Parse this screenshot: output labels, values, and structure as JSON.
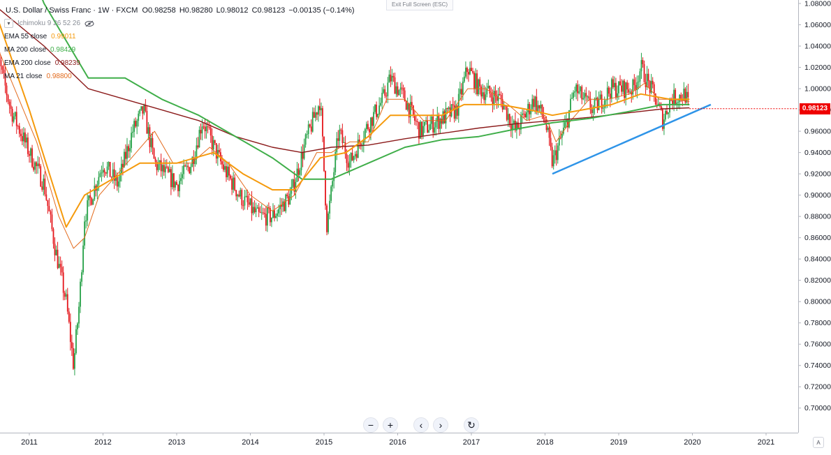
{
  "header": {
    "title": "U.S. Dollar / Swiss Franc · 1W · FXCM",
    "open": "O0.98258",
    "high": "H0.98280",
    "low": "L0.98012",
    "close": "C0.98123",
    "change": "−0.00135 (−0.14%)"
  },
  "indicators": [
    {
      "name": "Ichimoku 9 26 52 26",
      "value": "",
      "color": "#8a8f98"
    },
    {
      "name": "EMA 55 close",
      "value": "0.99011",
      "color": "#f59a0c"
    },
    {
      "name": "MA 200 close",
      "value": "0.98429",
      "color": "#3fae49"
    },
    {
      "name": "EMA 200 close",
      "value": "0.98239",
      "color": "#8b1a1a"
    },
    {
      "name": "MA 21 close",
      "value": "0.98800",
      "color": "#e36a1c"
    }
  ],
  "toolbar": {
    "exit_fullscreen": "Exit Full Screen (ESC)",
    "zoom_out": "−",
    "zoom_in": "+",
    "scroll_left": "‹",
    "scroll_right": "›",
    "reset": "↻",
    "auto_scale": "A"
  },
  "last_price": "0.98123",
  "icons": {
    "eye_off": "eye-off-icon",
    "collapse": "chevron-down-icon"
  },
  "colors": {
    "up_candle": "#26a148",
    "down_candle": "#e4161b",
    "ema55": "#f59a0c",
    "ma200": "#3fae49",
    "ema200": "#8b1a1a",
    "ma21": "#e36a1c",
    "trendline": "#2e94e8",
    "price_tag": "#ef0000"
  },
  "chart_data": {
    "type": "candlestick",
    "symbol": "USDCHF",
    "interval": "1W",
    "ylim": [
      0.69,
      1.08
    ],
    "y_ticks": [
      "1.08000",
      "1.06000",
      "1.04000",
      "1.02000",
      "1.00000",
      "0.98000",
      "0.96000",
      "0.94000",
      "0.92000",
      "0.90000",
      "0.88000",
      "0.86000",
      "0.84000",
      "0.82000",
      "0.80000",
      "0.78000",
      "0.76000",
      "0.74000",
      "0.72000",
      "0.70000"
    ],
    "x_ticks": [
      "2011",
      "2012",
      "2013",
      "2014",
      "2015",
      "2016",
      "2017",
      "2018",
      "2019",
      "2020",
      "2021"
    ],
    "price_anchors": [
      [
        2010.5,
        1.05
      ],
      [
        2010.75,
        0.98
      ],
      [
        2011.0,
        0.94
      ],
      [
        2011.2,
        0.91
      ],
      [
        2011.35,
        0.85
      ],
      [
        2011.5,
        0.8
      ],
      [
        2011.6,
        0.74
      ],
      [
        2011.68,
        0.8
      ],
      [
        2011.75,
        0.88
      ],
      [
        2012.0,
        0.93
      ],
      [
        2012.2,
        0.91
      ],
      [
        2012.4,
        0.96
      ],
      [
        2012.55,
        0.98
      ],
      [
        2012.7,
        0.93
      ],
      [
        2013.0,
        0.91
      ],
      [
        2013.2,
        0.93
      ],
      [
        2013.35,
        0.97
      ],
      [
        2013.6,
        0.93
      ],
      [
        2013.85,
        0.9
      ],
      [
        2014.1,
        0.88
      ],
      [
        2014.3,
        0.88
      ],
      [
        2014.55,
        0.9
      ],
      [
        2014.75,
        0.95
      ],
      [
        2014.95,
        0.99
      ],
      [
        2015.04,
        0.87
      ],
      [
        2015.2,
        0.96
      ],
      [
        2015.35,
        0.93
      ],
      [
        2015.55,
        0.96
      ],
      [
        2015.8,
        0.99
      ],
      [
        2015.9,
        1.01
      ],
      [
        2016.1,
        0.99
      ],
      [
        2016.3,
        0.96
      ],
      [
        2016.55,
        0.97
      ],
      [
        2016.8,
        0.98
      ],
      [
        2016.95,
        1.02
      ],
      [
        2017.1,
        1.0
      ],
      [
        2017.4,
        0.99
      ],
      [
        2017.6,
        0.96
      ],
      [
        2017.85,
        0.99
      ],
      [
        2018.0,
        0.97
      ],
      [
        2018.1,
        0.93
      ],
      [
        2018.3,
        0.97
      ],
      [
        2018.4,
        1.0
      ],
      [
        2018.65,
        0.98
      ],
      [
        2018.9,
        1.0
      ],
      [
        2019.2,
        1.0
      ],
      [
        2019.3,
        1.02
      ],
      [
        2019.5,
        0.99
      ],
      [
        2019.6,
        0.97
      ],
      [
        2019.7,
        0.99
      ],
      [
        2019.9,
        0.995
      ],
      [
        2019.96,
        0.981
      ]
    ],
    "ema55": [
      [
        2010.5,
        1.08
      ],
      [
        2011.0,
        0.98
      ],
      [
        2011.5,
        0.87
      ],
      [
        2011.75,
        0.9
      ],
      [
        2012.0,
        0.91
      ],
      [
        2012.5,
        0.93
      ],
      [
        2013.0,
        0.93
      ],
      [
        2013.5,
        0.94
      ],
      [
        2013.9,
        0.92
      ],
      [
        2014.3,
        0.905
      ],
      [
        2014.6,
        0.905
      ],
      [
        2014.95,
        0.935
      ],
      [
        2015.3,
        0.94
      ],
      [
        2015.6,
        0.955
      ],
      [
        2015.9,
        0.975
      ],
      [
        2016.3,
        0.975
      ],
      [
        2016.6,
        0.975
      ],
      [
        2016.9,
        0.985
      ],
      [
        2017.4,
        0.985
      ],
      [
        2017.8,
        0.98
      ],
      [
        2018.1,
        0.975
      ],
      [
        2018.5,
        0.98
      ],
      [
        2018.9,
        0.985
      ],
      [
        2019.3,
        0.995
      ],
      [
        2019.7,
        0.99
      ],
      [
        2019.96,
        0.99
      ]
    ],
    "ma200": [
      [
        2010.5,
        1.2
      ],
      [
        2011.2,
        1.08
      ],
      [
        2011.8,
        1.01
      ],
      [
        2012.3,
        1.01
      ],
      [
        2012.8,
        0.99
      ],
      [
        2013.3,
        0.975
      ],
      [
        2013.8,
        0.955
      ],
      [
        2014.3,
        0.935
      ],
      [
        2014.7,
        0.915
      ],
      [
        2015.1,
        0.915
      ],
      [
        2015.6,
        0.93
      ],
      [
        2016.1,
        0.945
      ],
      [
        2016.6,
        0.952
      ],
      [
        2017.1,
        0.955
      ],
      [
        2017.6,
        0.962
      ],
      [
        2018.1,
        0.968
      ],
      [
        2018.6,
        0.972
      ],
      [
        2019.1,
        0.978
      ],
      [
        2019.6,
        0.985
      ],
      [
        2019.96,
        0.985
      ]
    ],
    "ema200": [
      [
        2010.5,
        1.08
      ],
      [
        2011.2,
        1.04
      ],
      [
        2011.8,
        1.0
      ],
      [
        2012.3,
        0.99
      ],
      [
        2012.8,
        0.98
      ],
      [
        2013.3,
        0.97
      ],
      [
        2013.8,
        0.955
      ],
      [
        2014.3,
        0.945
      ],
      [
        2014.7,
        0.94
      ],
      [
        2015.1,
        0.945
      ],
      [
        2015.6,
        0.947
      ],
      [
        2016.1,
        0.953
      ],
      [
        2016.6,
        0.958
      ],
      [
        2017.1,
        0.963
      ],
      [
        2017.6,
        0.967
      ],
      [
        2018.1,
        0.97
      ],
      [
        2018.6,
        0.973
      ],
      [
        2019.1,
        0.977
      ],
      [
        2019.6,
        0.981
      ],
      [
        2019.96,
        0.982
      ]
    ],
    "ma21": [
      [
        2010.5,
        1.05
      ],
      [
        2010.8,
        1.0
      ],
      [
        2011.1,
        0.95
      ],
      [
        2011.4,
        0.88
      ],
      [
        2011.6,
        0.85
      ],
      [
        2011.75,
        0.86
      ],
      [
        2011.95,
        0.9
      ],
      [
        2012.2,
        0.92
      ],
      [
        2012.45,
        0.94
      ],
      [
        2012.7,
        0.96
      ],
      [
        2012.95,
        0.93
      ],
      [
        2013.2,
        0.93
      ],
      [
        2013.45,
        0.945
      ],
      [
        2013.7,
        0.93
      ],
      [
        2014.0,
        0.9
      ],
      [
        2014.3,
        0.885
      ],
      [
        2014.6,
        0.9
      ],
      [
        2014.9,
        0.94
      ],
      [
        2015.1,
        0.94
      ],
      [
        2015.35,
        0.95
      ],
      [
        2015.6,
        0.95
      ],
      [
        2015.85,
        0.99
      ],
      [
        2016.1,
        0.99
      ],
      [
        2016.35,
        0.97
      ],
      [
        2016.65,
        0.97
      ],
      [
        2016.95,
        1.0
      ],
      [
        2017.2,
        1.0
      ],
      [
        2017.5,
        0.985
      ],
      [
        2017.75,
        0.97
      ],
      [
        2018.0,
        0.975
      ],
      [
        2018.15,
        0.95
      ],
      [
        2018.35,
        0.97
      ],
      [
        2018.6,
        0.99
      ],
      [
        2018.85,
        0.99
      ],
      [
        2019.15,
        0.995
      ],
      [
        2019.35,
        1.005
      ],
      [
        2019.55,
        0.99
      ],
      [
        2019.75,
        0.99
      ],
      [
        2019.96,
        0.988
      ]
    ],
    "trendline": [
      [
        2018.1,
        0.92
      ],
      [
        2020.25,
        0.985
      ]
    ],
    "last_price": 0.98123
  }
}
